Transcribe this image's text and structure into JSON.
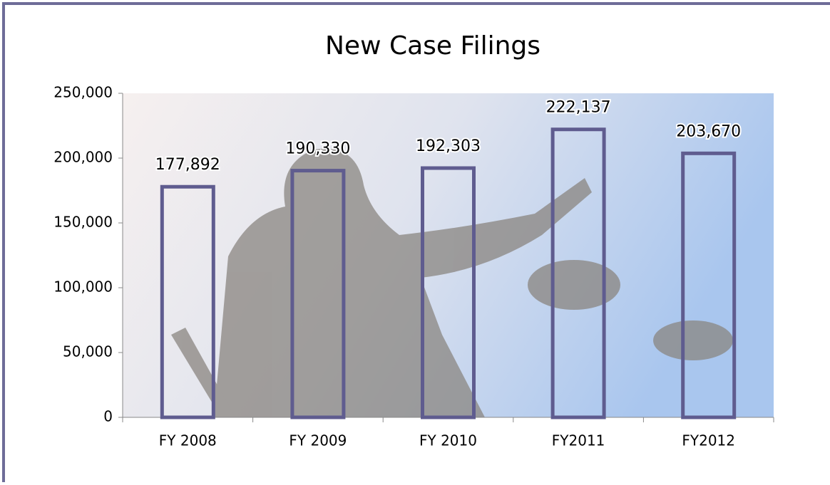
{
  "chart_data": {
    "type": "bar",
    "title": "New Case Filings",
    "categories": [
      "FY 2008",
      "FY 2009",
      "FY 2010",
      "FY2011",
      "FY2012"
    ],
    "values": [
      177892,
      190330,
      192303,
      222137,
      203670
    ],
    "value_labels": [
      "177,892",
      "190,330",
      "192,303",
      "222,137",
      "203,670"
    ],
    "color": "#5f5c8f",
    "ylim": [
      0,
      250000
    ],
    "yticks": [
      0,
      {
        "value": 50000,
        "label": "50,000"
      },
      {
        "value": 100000,
        "label": "100,000"
      },
      {
        "value": 150000,
        "label": "150,000"
      },
      {
        "value": 200000,
        "label": "200,000"
      },
      {
        "value": 250000,
        "label": "250,000"
      }
    ]
  }
}
